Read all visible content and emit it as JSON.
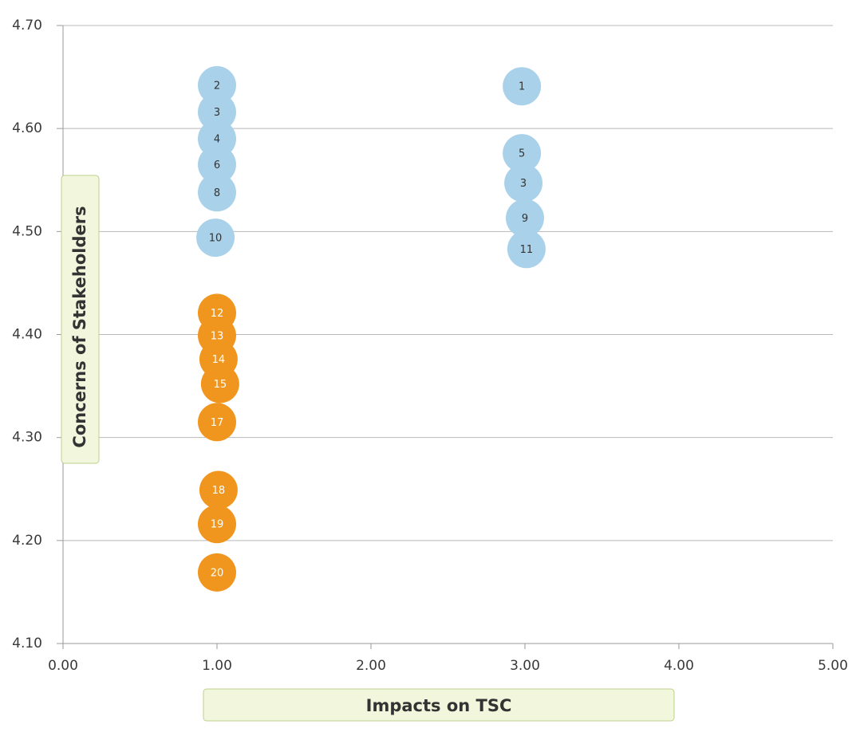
{
  "chart_data": {
    "type": "scatter",
    "title": "",
    "xlabel": "Impacts on TSC",
    "ylabel": "Concerns of Stakeholders",
    "xlim": [
      0,
      5
    ],
    "ylim": [
      4.1,
      4.7
    ],
    "x_ticks": [
      "0.00",
      "1.00",
      "2.00",
      "3.00",
      "4.00",
      "5.00"
    ],
    "y_ticks": [
      "4.10",
      "4.20",
      "4.30",
      "4.40",
      "4.50",
      "4.60",
      "4.70"
    ],
    "grid": "horizontal",
    "series": [
      {
        "color": "#a9d2ea",
        "text_color": "#333333",
        "points": [
          {
            "label": "2",
            "x": 1.0,
            "y": 4.642
          },
          {
            "label": "3",
            "x": 1.0,
            "y": 4.616
          },
          {
            "label": "4",
            "x": 1.0,
            "y": 4.59
          },
          {
            "label": "6",
            "x": 1.0,
            "y": 4.565
          },
          {
            "label": "8",
            "x": 1.0,
            "y": 4.538
          },
          {
            "label": "10",
            "x": 0.99,
            "y": 4.494
          },
          {
            "label": "1",
            "x": 2.98,
            "y": 4.641
          },
          {
            "label": "5",
            "x": 2.98,
            "y": 4.576
          },
          {
            "label": "3",
            "x": 2.99,
            "y": 4.547
          },
          {
            "label": "9",
            "x": 3.0,
            "y": 4.513
          },
          {
            "label": "11",
            "x": 3.01,
            "y": 4.483
          }
        ]
      },
      {
        "color": "#f0961e",
        "text_color": "#ffffff",
        "points": [
          {
            "label": "12",
            "x": 1.0,
            "y": 4.421
          },
          {
            "label": "13",
            "x": 1.0,
            "y": 4.399
          },
          {
            "label": "14",
            "x": 1.01,
            "y": 4.376
          },
          {
            "label": "15",
            "x": 1.02,
            "y": 4.352
          },
          {
            "label": "17",
            "x": 1.0,
            "y": 4.315
          },
          {
            "label": "18",
            "x": 1.01,
            "y": 4.249
          },
          {
            "label": "19",
            "x": 1.0,
            "y": 4.216
          },
          {
            "label": "20",
            "x": 1.0,
            "y": 4.169
          }
        ]
      }
    ]
  }
}
